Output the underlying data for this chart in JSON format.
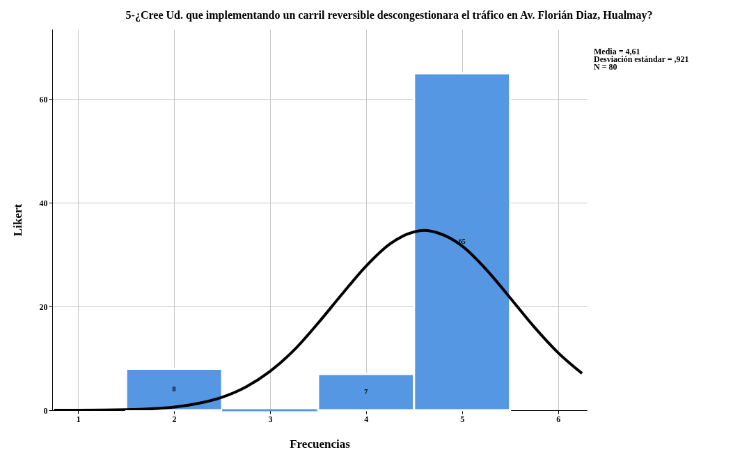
{
  "chart_data": {
    "type": "histogram",
    "title": "5-¿Cree Ud. que implementando un carril reversible descongestionara el tráfico en Av. Florián Diaz, Hualmay?",
    "xlabel": "Frecuencias",
    "ylabel": "Likert",
    "bins": [
      1.5,
      2.5,
      3.5,
      4.5,
      5.5
    ],
    "values": [
      8,
      0,
      7,
      65
    ],
    "color": "#5597e3",
    "value_labels": [
      "8",
      null,
      "7",
      "65"
    ],
    "series": [
      {
        "type": "line",
        "color": "#000000",
        "x": [
          0.75,
          1.0,
          1.5,
          2.0,
          2.25,
          2.5,
          2.75,
          3.0,
          3.25,
          3.5,
          3.75,
          4.0,
          4.25,
          4.5,
          4.61,
          4.75,
          5.0,
          5.25,
          5.5,
          5.75,
          6.0,
          6.25
        ],
        "values": [
          0.0,
          0.0,
          0.1,
          0.6,
          1.3,
          2.5,
          4.5,
          7.5,
          11.6,
          16.8,
          22.4,
          27.8,
          32.1,
          34.4,
          34.7,
          34.2,
          31.7,
          27.2,
          21.7,
          16.1,
          11.1,
          7.1
        ]
      }
    ],
    "xlim": [
      0.73,
      6.3
    ],
    "xticks": [
      1,
      2,
      3,
      4,
      5,
      6
    ],
    "ylim": [
      0,
      73.5
    ],
    "yticks": [
      0,
      20,
      40,
      60
    ],
    "grid": true,
    "annotations": [
      "Media = 4,61",
      "Desviación estándar = ,921",
      "N = 80"
    ]
  }
}
